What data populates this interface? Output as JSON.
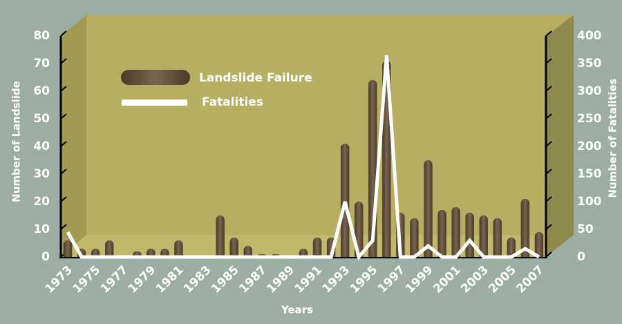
{
  "chart_data": {
    "type": "bar",
    "categories": [
      "1973",
      null,
      "1975",
      null,
      "1977",
      null,
      "1979",
      null,
      "1981",
      null,
      "1983",
      null,
      "1985",
      null,
      "1987",
      null,
      "1989",
      null,
      "1991",
      null,
      "1993",
      null,
      "1995",
      null,
      "1997",
      null,
      "1999",
      null,
      "2001",
      null,
      "2003",
      null,
      "2005",
      null,
      "2007"
    ],
    "series": [
      {
        "name": "Landslide Failure",
        "type": "bar",
        "color": "#5e4a36",
        "values": [
          6,
          3,
          3,
          6,
          0,
          2,
          3,
          3,
          6,
          0,
          0,
          15,
          7,
          4,
          1,
          1,
          0,
          3,
          7,
          7,
          41,
          20,
          64,
          71,
          16,
          14,
          35,
          17,
          18,
          16,
          15,
          14,
          7,
          21,
          9
        ]
      },
      {
        "name": "Fatalities",
        "type": "line",
        "color": "#ffffff",
        "axis": "y2",
        "values": [
          45,
          0,
          0,
          0,
          0,
          0,
          0,
          0,
          0,
          0,
          0,
          0,
          0,
          0,
          0,
          0,
          0,
          0,
          0,
          0,
          100,
          0,
          30,
          365,
          0,
          0,
          20,
          0,
          0,
          30,
          0,
          0,
          0,
          15,
          0
        ]
      }
    ],
    "xlabel": "Years",
    "ylabel": "Number of Landslide",
    "y2label": "Number of Fatalities",
    "ylim": [
      0,
      80
    ],
    "yticks": [
      0,
      10,
      20,
      30,
      40,
      50,
      60,
      70,
      80
    ],
    "y2lim": [
      0,
      400
    ],
    "y2ticks": [
      0,
      50,
      100,
      150,
      200,
      250,
      300,
      350,
      400
    ]
  }
}
